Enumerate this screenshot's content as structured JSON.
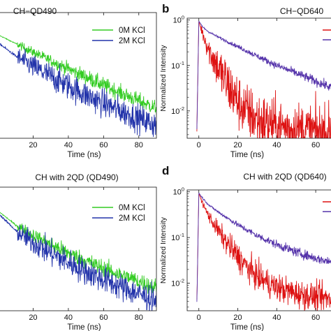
{
  "chart_data": [
    {
      "panel": "top-left",
      "type": "line",
      "title": "CH−QD490",
      "xlabel": "Time (ns)",
      "ylabel": "",
      "xticks": [
        "20",
        "40",
        "60",
        "80"
      ],
      "xlim": [
        0,
        90
      ],
      "yscale": "log",
      "ylim": [
        0.003,
        1
      ],
      "legend_position": "top-right",
      "series": [
        {
          "name": "0M KCl",
          "color": "#33cc22",
          "x": [
            0,
            10,
            20,
            30,
            40,
            50,
            60,
            70,
            80,
            90
          ],
          "y": [
            0.36,
            0.24,
            0.16,
            0.108,
            0.074,
            0.051,
            0.035,
            0.024,
            0.017,
            0.012
          ],
          "noise": 0.18
        },
        {
          "name": "2M KCl",
          "color": "#2233aa",
          "x": [
            0,
            10,
            20,
            30,
            40,
            50,
            60,
            70,
            80,
            90
          ],
          "y": [
            0.25,
            0.135,
            0.082,
            0.052,
            0.034,
            0.022,
            0.015,
            0.0105,
            0.0075,
            0.0055
          ],
          "noise": 0.32
        }
      ]
    },
    {
      "panel": "top-right",
      "panel_label": "b",
      "type": "line",
      "title": "CH−QD640",
      "xlabel": "Time (ns)",
      "ylabel": "Normalized Intensity",
      "xticks": [
        "0",
        "20",
        "40",
        "60"
      ],
      "yticks": [
        "10^0",
        "10^-1",
        "10^-2"
      ],
      "xlim": [
        -6,
        70
      ],
      "yscale": "log",
      "ylim": [
        0.0025,
        1.1
      ],
      "series": [
        {
          "color": "#dd1111",
          "x": [
            -1,
            0,
            2,
            5,
            10,
            15,
            20,
            25,
            30,
            40,
            50,
            60,
            70
          ],
          "y": [
            0.004,
            0.95,
            0.5,
            0.23,
            0.085,
            0.036,
            0.016,
            0.0095,
            0.0065,
            0.0045,
            0.004,
            0.0035,
            0.003
          ],
          "noise": 0.7
        },
        {
          "color": "#5533aa",
          "x": [
            -1,
            0,
            2,
            5,
            10,
            20,
            30,
            40,
            50,
            60,
            70
          ],
          "y": [
            0.004,
            0.95,
            0.7,
            0.55,
            0.42,
            0.26,
            0.16,
            0.1,
            0.068,
            0.045,
            0.03
          ],
          "noise": 0.12
        }
      ]
    },
    {
      "panel": "bottom-left",
      "type": "line",
      "title": "CH with 2QD (QD490)",
      "xlabel": "Time (ns)",
      "ylabel": "",
      "xticks": [
        "20",
        "40",
        "60",
        "80"
      ],
      "xlim": [
        0,
        90
      ],
      "yscale": "log",
      "ylim": [
        0.003,
        1
      ],
      "legend_position": "top-right",
      "series": [
        {
          "name": "0M KCl",
          "color": "#33cc22",
          "x": [
            0,
            10,
            20,
            30,
            40,
            50,
            60,
            70,
            80,
            90
          ],
          "y": [
            0.33,
            0.17,
            0.105,
            0.068,
            0.045,
            0.031,
            0.022,
            0.016,
            0.012,
            0.009
          ],
          "noise": 0.2
        },
        {
          "name": "2M KCl",
          "color": "#2233aa",
          "x": [
            0,
            10,
            20,
            30,
            40,
            50,
            60,
            70,
            80,
            90
          ],
          "y": [
            0.3,
            0.13,
            0.074,
            0.045,
            0.029,
            0.019,
            0.013,
            0.0092,
            0.0066,
            0.005
          ],
          "noise": 0.32
        }
      ]
    },
    {
      "panel": "bottom-right",
      "panel_label": "d",
      "type": "line",
      "title": "CH with 2QD (QD640)",
      "xlabel": "Time (ns)",
      "ylabel": "Normalized Intensity",
      "xticks": [
        "0",
        "20",
        "40",
        "60"
      ],
      "yticks": [
        "10^0",
        "10^-1",
        "10^-2"
      ],
      "xlim": [
        -6,
        70
      ],
      "yscale": "log",
      "ylim": [
        0.0025,
        1.1
      ],
      "series": [
        {
          "color": "#dd1111",
          "x": [
            -1,
            0,
            2,
            5,
            10,
            15,
            20,
            25,
            30,
            40,
            50,
            60,
            70
          ],
          "y": [
            0.004,
            0.95,
            0.55,
            0.3,
            0.14,
            0.07,
            0.038,
            0.022,
            0.014,
            0.008,
            0.006,
            0.005,
            0.0045
          ],
          "noise": 0.35
        },
        {
          "color": "#5533aa",
          "x": [
            -1,
            0,
            2,
            5,
            10,
            20,
            30,
            40,
            50,
            60,
            70
          ],
          "y": [
            0.004,
            0.95,
            0.72,
            0.52,
            0.36,
            0.19,
            0.11,
            0.07,
            0.048,
            0.035,
            0.028
          ],
          "noise": 0.12
        }
      ]
    }
  ]
}
